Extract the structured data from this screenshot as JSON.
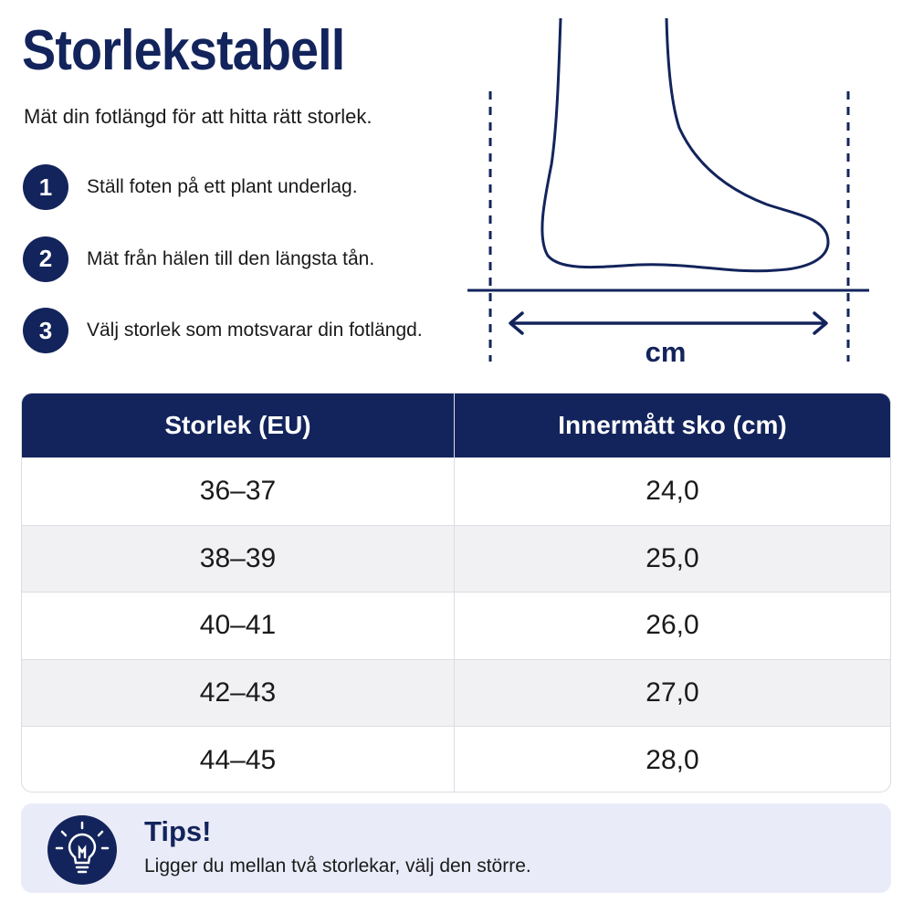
{
  "title": "Storlekstabell",
  "subtitle": "Mät din fotlängd för att hitta rätt storlek.",
  "steps": [
    {
      "number": "1",
      "text": "Ställ foten på ett plant underlag."
    },
    {
      "number": "2",
      "text": "Mät från hälen till den längsta tån."
    },
    {
      "number": "3",
      "text": "Välj storlek som motsvarar din fotlängd."
    }
  ],
  "diagram": {
    "unit_label": "cm"
  },
  "table": {
    "headers": [
      "Storlek (EU)",
      "Innermått sko (cm)"
    ],
    "rows": [
      [
        "36–37",
        "24,0"
      ],
      [
        "38–39",
        "25,0"
      ],
      [
        "40–41",
        "26,0"
      ],
      [
        "42–43",
        "27,0"
      ],
      [
        "44–45",
        "28,0"
      ]
    ]
  },
  "tip": {
    "title": "Tips!",
    "text": "Ligger du mellan två storlekar, välj den större."
  }
}
